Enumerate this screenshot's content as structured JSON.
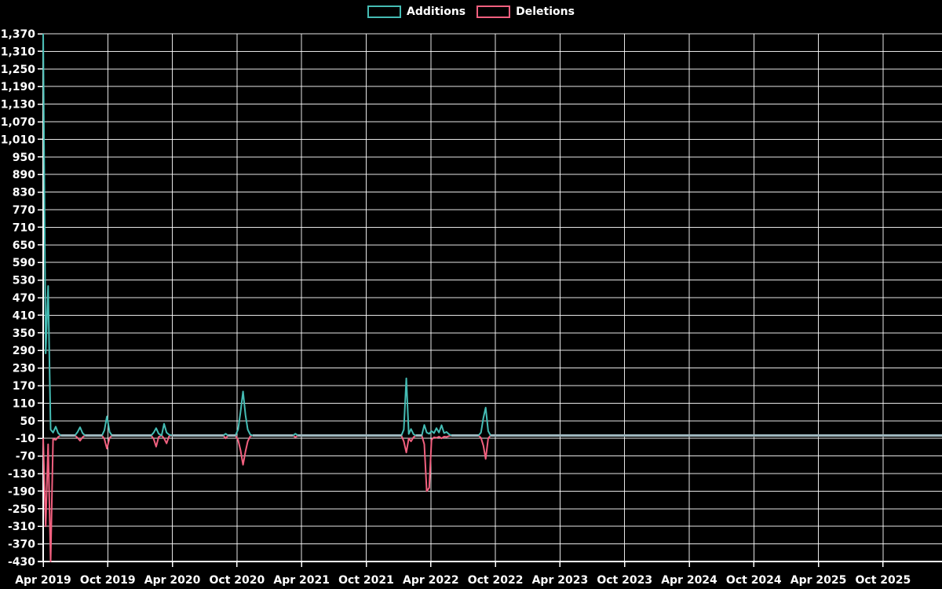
{
  "legend": {
    "items": [
      {
        "label": "Additions",
        "color": "#45bcb4"
      },
      {
        "label": "Deletions",
        "color": "#f2607f"
      }
    ]
  },
  "axes": {
    "x_tick_labels": [
      "Apr 2019",
      "Oct 2019",
      "Apr 2020",
      "Oct 2020",
      "Apr 2021",
      "Oct 2021",
      "Apr 2022",
      "Oct 2022",
      "Apr 2023",
      "Oct 2023",
      "Apr 2024",
      "Oct 2024",
      "Apr 2025",
      "Oct 2025"
    ],
    "y_tick_labels": [
      "1,370",
      "1,310",
      "1,250",
      "1,190",
      "1,130",
      "1,070",
      "1,010",
      "950",
      "890",
      "830",
      "770",
      "710",
      "650",
      "590",
      "530",
      "470",
      "410",
      "350",
      "290",
      "230",
      "170",
      "110",
      "50",
      "-10",
      "-70",
      "-130",
      "-190",
      "-250",
      "-310",
      "-370",
      "-430"
    ]
  },
  "colors": {
    "background": "#000000",
    "gridline": "#ffffff",
    "axis": "#ffffff",
    "tick_text": "#ffffff",
    "baseline_overlap": "#9eb6bd"
  },
  "chart_data": {
    "type": "line",
    "title": "",
    "xlabel": "",
    "ylabel": "",
    "ylim": [
      -430,
      1370
    ],
    "y_tick_step": 60,
    "x_range": [
      "2019-04-01",
      "2026-03-15"
    ],
    "grid": true,
    "legend_position": "top-center",
    "dates": [
      "2019-04-01",
      "2019-04-08",
      "2019-04-15",
      "2019-04-22",
      "2019-04-29",
      "2019-05-06",
      "2019-05-13",
      "2019-05-20",
      "2019-06-30",
      "2019-07-07",
      "2019-07-14",
      "2019-07-21",
      "2019-07-28",
      "2019-09-15",
      "2019-09-22",
      "2019-09-29",
      "2019-10-06",
      "2019-10-13",
      "2020-02-02",
      "2020-02-09",
      "2020-02-16",
      "2020-02-23",
      "2020-03-01",
      "2020-03-08",
      "2020-03-15",
      "2020-03-22",
      "2020-03-29",
      "2020-08-23",
      "2020-08-30",
      "2020-09-06",
      "2020-09-27",
      "2020-10-04",
      "2020-10-11",
      "2020-10-18",
      "2020-10-25",
      "2020-11-01",
      "2020-11-08",
      "2020-11-15",
      "2021-03-07",
      "2021-03-14",
      "2021-03-21",
      "2022-01-09",
      "2022-01-16",
      "2022-01-23",
      "2022-01-30",
      "2022-02-06",
      "2022-02-13",
      "2022-02-20",
      "2022-03-06",
      "2022-03-13",
      "2022-03-20",
      "2022-03-27",
      "2022-04-03",
      "2022-04-10",
      "2022-04-17",
      "2022-04-24",
      "2022-05-01",
      "2022-05-08",
      "2022-05-15",
      "2022-05-22",
      "2022-05-29",
      "2022-08-14",
      "2022-08-21",
      "2022-08-28",
      "2022-09-04",
      "2022-09-11",
      "2022-09-18",
      "2026-03-15"
    ],
    "series": [
      {
        "name": "Additions",
        "values": [
          1370,
          280,
          510,
          20,
          10,
          30,
          8,
          0,
          0,
          12,
          28,
          8,
          0,
          0,
          18,
          65,
          12,
          0,
          0,
          10,
          25,
          6,
          0,
          40,
          10,
          3,
          0,
          0,
          6,
          0,
          0,
          20,
          80,
          150,
          70,
          20,
          3,
          0,
          0,
          6,
          0,
          0,
          20,
          195,
          5,
          22,
          4,
          0,
          0,
          36,
          10,
          6,
          15,
          8,
          25,
          10,
          35,
          8,
          12,
          4,
          0,
          0,
          10,
          60,
          95,
          15,
          0,
          0
        ]
      },
      {
        "name": "Deletions",
        "values": [
          -10,
          -310,
          -30,
          -430,
          -12,
          -15,
          -5,
          0,
          0,
          -8,
          -18,
          -6,
          0,
          0,
          -12,
          -45,
          -8,
          0,
          0,
          -12,
          -38,
          -5,
          0,
          -10,
          -27,
          -3,
          0,
          0,
          -10,
          0,
          0,
          -15,
          -50,
          -100,
          -55,
          -20,
          -3,
          0,
          0,
          -6,
          0,
          0,
          -20,
          -58,
          -10,
          -20,
          -6,
          0,
          0,
          -30,
          -190,
          -178,
          -15,
          -6,
          -8,
          -4,
          -10,
          -4,
          -5,
          -2,
          0,
          0,
          -8,
          -35,
          -80,
          -10,
          0,
          0
        ]
      }
    ]
  }
}
